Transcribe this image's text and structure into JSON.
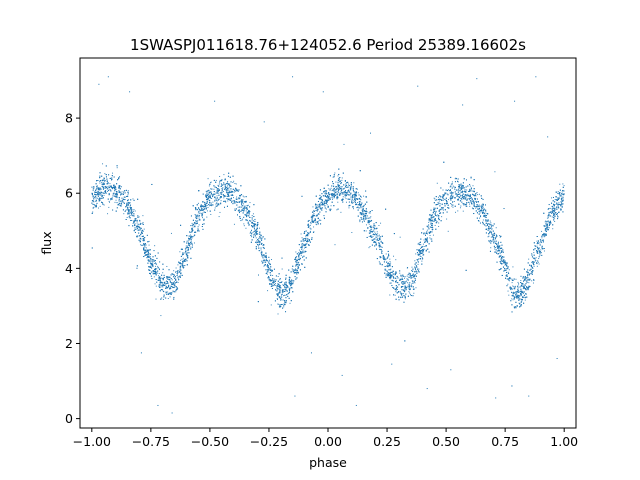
{
  "chart_data": {
    "type": "scatter",
    "title": "1SWASPJ011618.76+124052.6 Period 25389.16602s",
    "xlabel": "phase",
    "ylabel": "flux",
    "xlim": [
      -1.05,
      1.05
    ],
    "ylim": [
      -0.25,
      9.6
    ],
    "xticks": [
      -1.0,
      -0.75,
      -0.5,
      -0.25,
      0.0,
      0.25,
      0.5,
      0.75,
      1.0
    ],
    "xtick_labels": [
      "−1.00",
      "−0.75",
      "−0.50",
      "−0.25",
      "0.00",
      "0.25",
      "0.50",
      "0.75",
      "1.00"
    ],
    "yticks": [
      0,
      2,
      4,
      6,
      8
    ],
    "ytick_labels": [
      "0",
      "2",
      "4",
      "6",
      "8"
    ],
    "grid": false,
    "marker_color": "#1f77b4",
    "series": [
      {
        "values": [
          [
            -1.0,
            5.85
          ],
          [
            -0.95,
            6.15
          ],
          [
            -0.9,
            6.05
          ],
          [
            -0.85,
            5.7
          ],
          [
            -0.8,
            5.05
          ],
          [
            -0.75,
            4.2
          ],
          [
            -0.7,
            3.55
          ],
          [
            -0.67,
            3.5
          ],
          [
            -0.64,
            3.75
          ],
          [
            -0.6,
            4.5
          ],
          [
            -0.55,
            5.4
          ],
          [
            -0.5,
            5.9
          ],
          [
            -0.45,
            6.05
          ],
          [
            -0.4,
            5.95
          ],
          [
            -0.35,
            5.6
          ],
          [
            -0.3,
            4.9
          ],
          [
            -0.25,
            4.0
          ],
          [
            -0.22,
            3.45
          ],
          [
            -0.19,
            3.3
          ],
          [
            -0.16,
            3.55
          ],
          [
            -0.1,
            4.6
          ],
          [
            -0.05,
            5.5
          ],
          [
            0.0,
            5.95
          ],
          [
            0.05,
            6.1
          ],
          [
            0.1,
            5.95
          ],
          [
            0.15,
            5.55
          ],
          [
            0.2,
            4.85
          ],
          [
            0.25,
            4.05
          ],
          [
            0.3,
            3.55
          ],
          [
            0.33,
            3.5
          ],
          [
            0.36,
            3.75
          ],
          [
            0.4,
            4.5
          ],
          [
            0.45,
            5.4
          ],
          [
            0.5,
            5.9
          ],
          [
            0.55,
            6.05
          ],
          [
            0.6,
            5.95
          ],
          [
            0.65,
            5.55
          ],
          [
            0.7,
            4.85
          ],
          [
            0.75,
            4.0
          ],
          [
            0.78,
            3.45
          ],
          [
            0.81,
            3.3
          ],
          [
            0.84,
            3.55
          ],
          [
            0.9,
            4.6
          ],
          [
            0.95,
            5.5
          ],
          [
            1.0,
            5.95
          ]
        ]
      }
    ],
    "outliers": [
      [
        -0.97,
        8.9
      ],
      [
        -0.93,
        9.1
      ],
      [
        -0.84,
        8.7
      ],
      [
        -0.79,
        1.75
      ],
      [
        -0.72,
        0.35
      ],
      [
        -0.66,
        0.15
      ],
      [
        -0.48,
        8.45
      ],
      [
        -0.27,
        7.9
      ],
      [
        -0.15,
        9.1
      ],
      [
        -0.14,
        0.6
      ],
      [
        -0.07,
        1.75
      ],
      [
        -0.02,
        8.7
      ],
      [
        0.06,
        1.15
      ],
      [
        0.12,
        0.35
      ],
      [
        0.18,
        7.6
      ],
      [
        0.27,
        1.45
      ],
      [
        0.38,
        8.85
      ],
      [
        0.42,
        0.8
      ],
      [
        0.52,
        1.3
      ],
      [
        0.57,
        8.35
      ],
      [
        0.63,
        9.05
      ],
      [
        0.71,
        0.55
      ],
      [
        0.79,
        8.45
      ],
      [
        0.85,
        0.6
      ],
      [
        0.88,
        9.1
      ],
      [
        0.93,
        7.5
      ],
      [
        0.97,
        1.6
      ]
    ]
  }
}
